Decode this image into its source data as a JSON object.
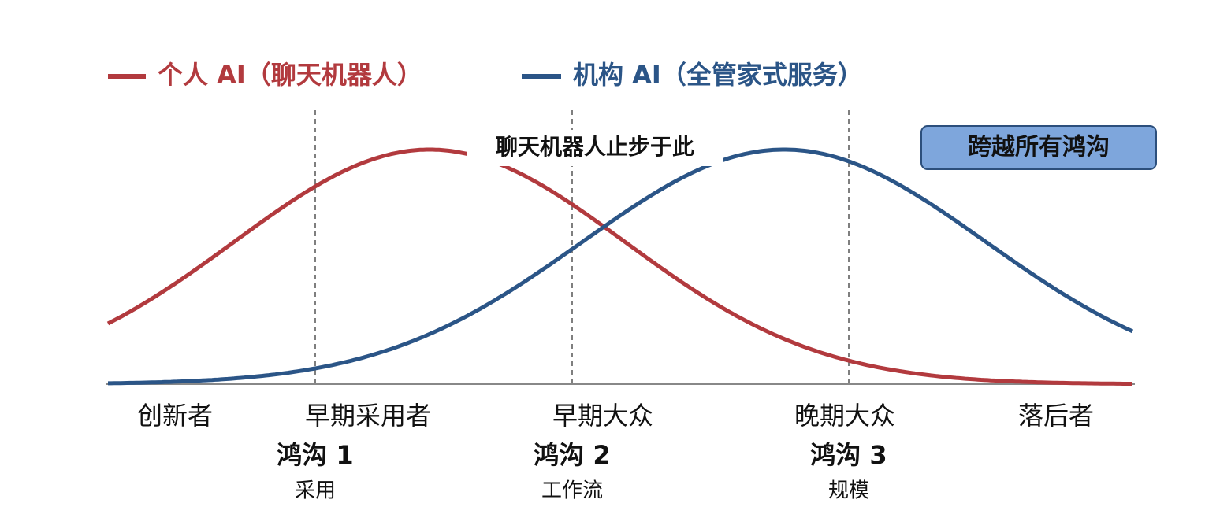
{
  "legend": [
    {
      "label": "个人 AI（聊天机器人）",
      "color": "#b23a3e"
    },
    {
      "label": "机构 AI（全管家式服务）",
      "color": "#2b5587"
    }
  ],
  "annotation": "聊天机器人止步于此",
  "callout": "跨越所有鸿沟",
  "stages": [
    "创新者",
    "早期采用者",
    "早期大众",
    "晚期大众",
    "落后者"
  ],
  "chasms": [
    {
      "label": "鸿沟 1",
      "sublabel": "采用"
    },
    {
      "label": "鸿沟 2",
      "sublabel": "工作流"
    },
    {
      "label": "鸿沟 3",
      "sublabel": "规模"
    }
  ]
}
